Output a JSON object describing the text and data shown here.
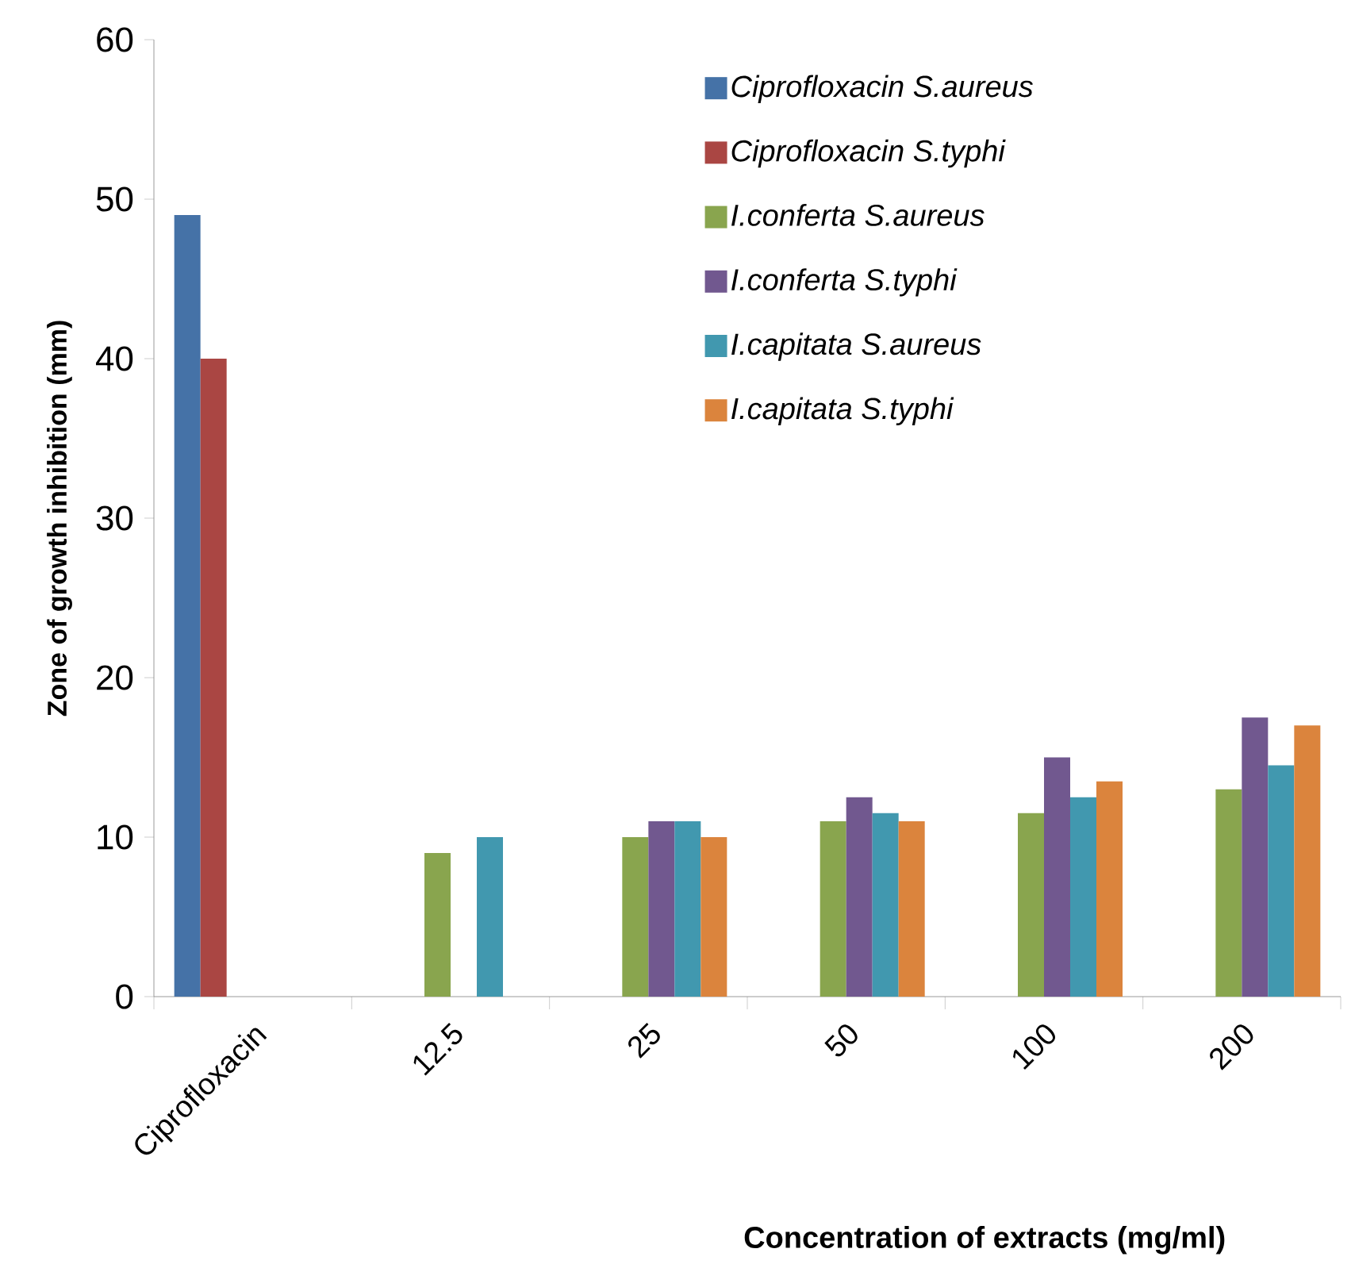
{
  "chart_data": {
    "type": "bar",
    "xlabel": "Concentration of extracts (mg/ml)",
    "ylabel": "Zone of growth inhibition (mm)",
    "categories": [
      "Ciprofloxacin",
      "12.5",
      "25",
      "50",
      "100",
      "200"
    ],
    "series": [
      {
        "name": "Ciprofloxacin S.aureus",
        "color": "#4572a7",
        "values": [
          49,
          null,
          null,
          null,
          null,
          null
        ]
      },
      {
        "name": "Ciprofloxacin S.typhi",
        "color": "#aa4643",
        "values": [
          40,
          null,
          null,
          null,
          null,
          null
        ]
      },
      {
        "name": "I.conferta  S.aureus",
        "color": "#89a54e",
        "values": [
          null,
          9,
          10,
          11,
          11.5,
          13
        ]
      },
      {
        "name": "I.conferta S.typhi",
        "color": "#71588f",
        "values": [
          null,
          null,
          11,
          12.5,
          15,
          17.5
        ]
      },
      {
        "name": "I.capitata S.aureus",
        "color": "#4198af",
        "values": [
          null,
          10,
          11,
          11.5,
          12.5,
          14.5
        ]
      },
      {
        "name": "I.capitata S.typhi",
        "color": "#db843d",
        "values": [
          null,
          null,
          10,
          11,
          13.5,
          17
        ]
      }
    ],
    "ylim": [
      0,
      60
    ],
    "yticks": [
      0,
      10,
      20,
      30,
      40,
      50,
      60
    ],
    "legend": "top right"
  }
}
